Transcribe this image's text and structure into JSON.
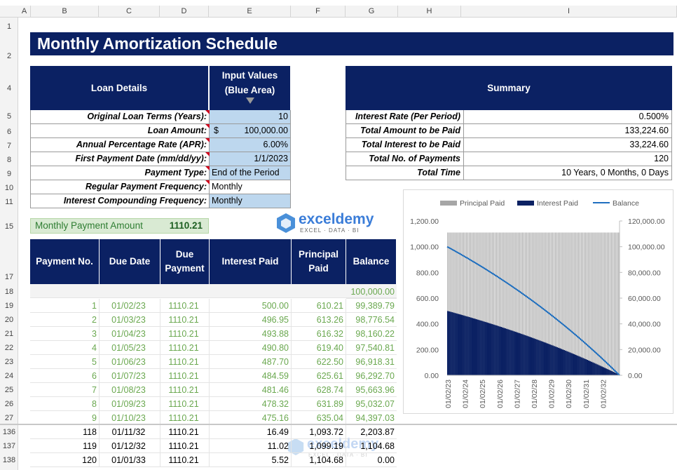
{
  "columns": [
    "A",
    "B",
    "C",
    "D",
    "E",
    "F",
    "G",
    "H",
    "I"
  ],
  "title": "Monthly Amortization Schedule",
  "loan": {
    "header_left": "Loan Details",
    "header_right_1": "Input Values",
    "header_right_2": "(Blue Area)",
    "rows": [
      {
        "label": "Original Loan Terms (Years):",
        "value": "10",
        "currency": ""
      },
      {
        "label": "Loan Amount:",
        "value": "100,000.00",
        "currency": "$"
      },
      {
        "label": "Annual Percentage Rate (APR):",
        "value": "6.00%",
        "currency": ""
      },
      {
        "label": "First Payment Date (mm/dd/yy):",
        "value": "1/1/2023",
        "currency": ""
      },
      {
        "label": "Payment Type:",
        "value": "End of the Period",
        "currency": ""
      },
      {
        "label": "Regular Payment Frequency:",
        "value": "Monthly",
        "currency": ""
      },
      {
        "label": "Interest Compounding Frequency:",
        "value": "Monthly",
        "currency": ""
      }
    ]
  },
  "summary": {
    "header": "Summary",
    "rows": [
      {
        "label": "Interest Rate (Per Period)",
        "value": "0.500%"
      },
      {
        "label": "Total Amount to be Paid",
        "value": "133,224.60"
      },
      {
        "label": "Total Interest to be Paid",
        "value": "33,224.60"
      },
      {
        "label": "Total No. of Payments",
        "value": "120"
      },
      {
        "label": "Total Time",
        "value": "10 Years, 0 Months, 0 Days"
      }
    ]
  },
  "monthly_payment": {
    "label": "Monthly Payment Amount",
    "value": "1110.21"
  },
  "logo": {
    "name": "exceldemy",
    "tagline": "EXCEL · DATA · BI"
  },
  "schedule": {
    "headers": [
      "Payment No.",
      "Due Date",
      "Due Payment",
      "Interest Paid",
      "Principal Paid",
      "Balance"
    ],
    "initial_balance": "100,000.00",
    "rows": [
      {
        "rn": "19",
        "no": "1",
        "date": "01/02/23",
        "pay": "1110.21",
        "int": "500.00",
        "prin": "610.21",
        "bal": "99,389.79"
      },
      {
        "rn": "20",
        "no": "2",
        "date": "01/03/23",
        "pay": "1110.21",
        "int": "496.95",
        "prin": "613.26",
        "bal": "98,776.54"
      },
      {
        "rn": "21",
        "no": "3",
        "date": "01/04/23",
        "pay": "1110.21",
        "int": "493.88",
        "prin": "616.32",
        "bal": "98,160.22"
      },
      {
        "rn": "22",
        "no": "4",
        "date": "01/05/23",
        "pay": "1110.21",
        "int": "490.80",
        "prin": "619.40",
        "bal": "97,540.81"
      },
      {
        "rn": "23",
        "no": "5",
        "date": "01/06/23",
        "pay": "1110.21",
        "int": "487.70",
        "prin": "622.50",
        "bal": "96,918.31"
      },
      {
        "rn": "24",
        "no": "6",
        "date": "01/07/23",
        "pay": "1110.21",
        "int": "484.59",
        "prin": "625.61",
        "bal": "96,292.70"
      },
      {
        "rn": "25",
        "no": "7",
        "date": "01/08/23",
        "pay": "1110.21",
        "int": "481.46",
        "prin": "628.74",
        "bal": "95,663.96"
      },
      {
        "rn": "26",
        "no": "8",
        "date": "01/09/23",
        "pay": "1110.21",
        "int": "478.32",
        "prin": "631.89",
        "bal": "95,032.07"
      },
      {
        "rn": "27",
        "no": "9",
        "date": "01/10/23",
        "pay": "1110.21",
        "int": "475.16",
        "prin": "635.04",
        "bal": "94,397.03"
      }
    ],
    "tail_rows": [
      {
        "rn": "136",
        "no": "118",
        "date": "01/11/32",
        "pay": "1110.21",
        "int": "16.49",
        "prin": "1,093.72",
        "bal": "2,203.87"
      },
      {
        "rn": "137",
        "no": "119",
        "date": "01/12/32",
        "pay": "1110.21",
        "int": "11.02",
        "prin": "1,099.19",
        "bal": "1,104.68"
      },
      {
        "rn": "138",
        "no": "120",
        "date": "01/01/33",
        "pay": "1110.21",
        "int": "5.52",
        "prin": "1,104.68",
        "bal": "0.00"
      }
    ]
  },
  "row_numbers": {
    "r1": "1",
    "r2": "2",
    "r4": "4",
    "r5": "5",
    "r6": "6",
    "r7": "7",
    "r8": "8",
    "r9": "9",
    "r10": "10",
    "r11": "11",
    "r15": "15",
    "r17": "17",
    "r18": "18"
  },
  "chart_data": {
    "type": "bar",
    "legend": [
      "Principal Paid",
      "Interest Paid",
      "Balance"
    ],
    "legend_position": "top",
    "colors": {
      "principal": "#a6a6a6",
      "interest": "#0b2163",
      "balance": "#1f6fbf"
    },
    "y_left": {
      "min": 0,
      "max": 1200,
      "ticks": [
        "0.00",
        "200.00",
        "400.00",
        "600.00",
        "800.00",
        "1,000.00",
        "1,200.00"
      ]
    },
    "y_right": {
      "min": 0,
      "max": 120000,
      "ticks": [
        "0.00",
        "20,000.00",
        "40,000.00",
        "60,000.00",
        "80,000.00",
        "100,000.00",
        "120,000.00"
      ]
    },
    "x_ticks": [
      "01/02/23",
      "01/02/24",
      "01/02/25",
      "01/02/26",
      "01/02/27",
      "01/02/28",
      "01/02/29",
      "01/02/30",
      "01/02/31",
      "01/02/32"
    ],
    "payments": 120,
    "monthly_payment": 1110.21,
    "principal_first": 610.21,
    "principal_last": 1104.68,
    "interest_first": 500.0,
    "interest_last": 5.52,
    "balance_start": 100000,
    "balance_end": 0,
    "grid": false
  }
}
